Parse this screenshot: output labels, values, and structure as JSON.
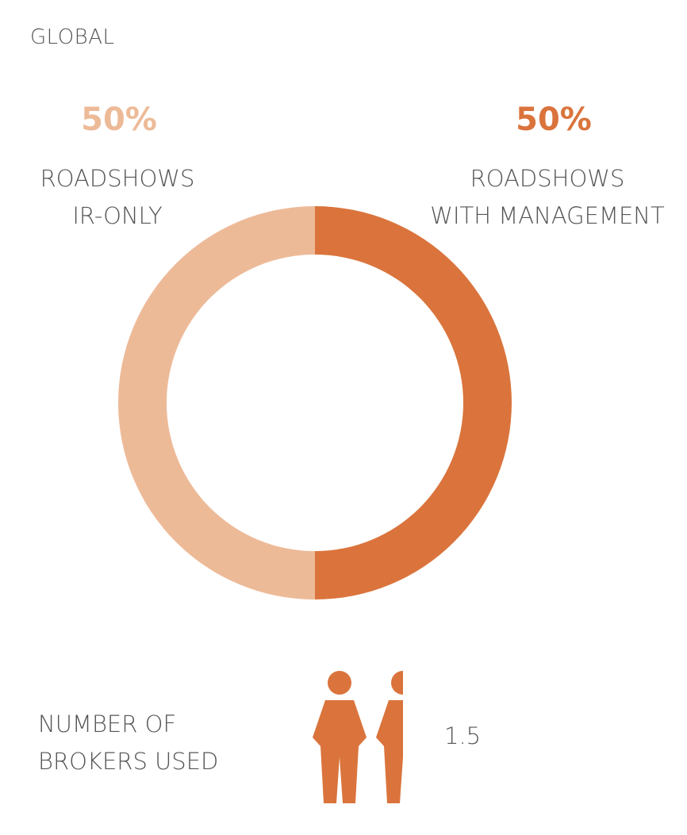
{
  "title": "GLOBAL",
  "colors": {
    "ir_only": "#EDBA98",
    "with_management": "#DA743C",
    "text": "#555555"
  },
  "chart_data": {
    "type": "pie",
    "donut": true,
    "slices": [
      {
        "label_line1": "ROADSHOWS",
        "label_line2": "IR-ONLY",
        "value": 50,
        "value_text": "50%",
        "color": "#EDBA98"
      },
      {
        "label_line1": "ROADSHOWS",
        "label_line2": "WITH MANAGEMENT",
        "value": 50,
        "value_text": "50%",
        "color": "#DA743C"
      }
    ]
  },
  "brokers": {
    "label_line1": "NUMBER OF",
    "label_line2": "BROKERS USED",
    "value": 1.5,
    "value_text": "1.5",
    "icon": "person-icon"
  }
}
